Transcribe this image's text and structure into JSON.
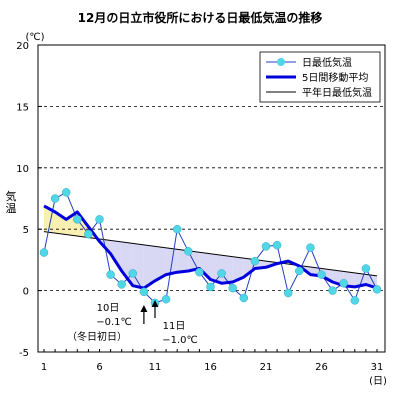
{
  "chart_data": {
    "type": "line",
    "title": "12月の日立市役所における日最低気温の推移",
    "ylabel": "気温",
    "yunit": "(℃)",
    "xunit": "(日)",
    "ylim": [
      -5,
      20
    ],
    "xlim": [
      1,
      31
    ],
    "yticks": [
      -5,
      0,
      5,
      10,
      15,
      20
    ],
    "xticks": [
      1,
      6,
      11,
      16,
      21,
      26,
      31
    ],
    "grid": "horizontal dashed at 5, 10, 15",
    "legend_position": "top-right",
    "series": [
      {
        "name": "日最低気温",
        "color": "#4fd7e8",
        "style": "thin blue line with cyan dot markers",
        "x": [
          1,
          2,
          3,
          4,
          5,
          6,
          7,
          8,
          9,
          10,
          11,
          12,
          13,
          14,
          15,
          16,
          17,
          18,
          19,
          20,
          21,
          22,
          23,
          24,
          25,
          26,
          27,
          28,
          29,
          30,
          31
        ],
        "values": [
          3.1,
          7.5,
          8.0,
          5.8,
          4.6,
          5.8,
          1.3,
          0.5,
          1.4,
          -0.1,
          -1.0,
          -0.7,
          5.0,
          3.2,
          1.5,
          0.3,
          1.4,
          0.2,
          -0.6,
          2.4,
          3.6,
          3.7,
          -0.2,
          1.6,
          3.5,
          1.3,
          0.0,
          0.6,
          -0.8,
          1.8,
          0.1
        ]
      },
      {
        "name": "5日間移動平均",
        "color": "#0000dd",
        "style": "thick blue line",
        "x": [
          1,
          2,
          3,
          4,
          5,
          6,
          7,
          8,
          9,
          10,
          11,
          12,
          13,
          14,
          15,
          16,
          17,
          18,
          19,
          20,
          21,
          22,
          23,
          24,
          25,
          26,
          27,
          28,
          29,
          30,
          31
        ],
        "values": [
          6.9,
          6.4,
          5.8,
          6.4,
          5.2,
          4.0,
          3.0,
          1.6,
          0.4,
          0.2,
          0.8,
          1.3,
          1.5,
          1.6,
          1.8,
          0.9,
          0.6,
          0.7,
          1.1,
          1.8,
          1.9,
          2.2,
          2.4,
          2.0,
          1.3,
          1.2,
          0.7,
          0.4,
          0.3,
          0.5,
          0.2
        ]
      },
      {
        "name": "平年日最低気温",
        "color": "#000000",
        "style": "thin black line",
        "x": [
          1,
          31
        ],
        "values": [
          4.8,
          1.2
        ]
      }
    ],
    "annotations": [
      {
        "x": 10,
        "y": -0.1,
        "lines": [
          "10日",
          "−0.1℃",
          "（冬日初日）"
        ]
      },
      {
        "x": 11,
        "y": -1.0,
        "lines": [
          "11日",
          "−1.0℃"
        ]
      }
    ],
    "shading": {
      "above_normal_color": "#f8f0b0",
      "below_normal_color": "#d8d8f4"
    }
  }
}
